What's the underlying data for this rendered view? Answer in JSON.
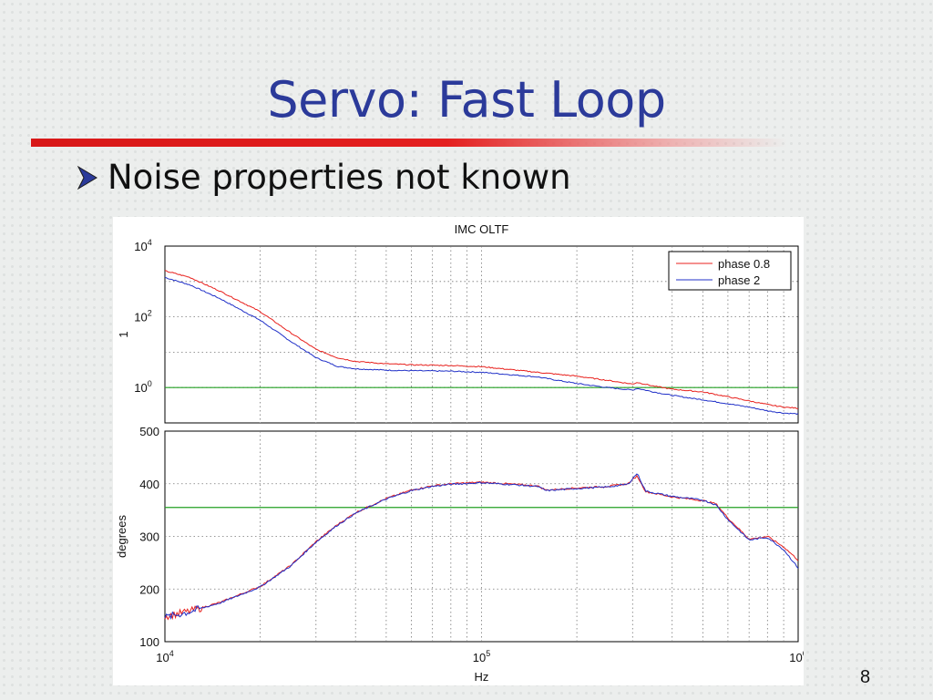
{
  "slide": {
    "title": "Servo: Fast Loop",
    "bullet": "Noise properties not known",
    "page_number": "8"
  },
  "chart_data": [
    {
      "type": "line",
      "title": "IMC OLTF",
      "xlabel": "",
      "ylabel": "1",
      "xscale": "log",
      "yscale": "log",
      "xlim": [
        10000,
        1000000
      ],
      "ylim": [
        0.1,
        10000
      ],
      "yticks": [
        {
          "base": "10",
          "exp": "0"
        },
        {
          "base": "10",
          "exp": "2"
        },
        {
          "base": "10",
          "exp": "4"
        }
      ],
      "grid": true,
      "legend": "top-right",
      "reference_line": {
        "y": 1,
        "color": "#22a022"
      },
      "x": [
        10000,
        12000,
        15000,
        20000,
        25000,
        30000,
        35000,
        40000,
        50000,
        60000,
        80000,
        100000,
        150000,
        200000,
        250000,
        300000,
        310000,
        350000,
        400000,
        500000,
        600000,
        700000,
        800000,
        900000,
        1000000
      ],
      "series": [
        {
          "name": "phase 0.8",
          "color": "#e8201c",
          "values": [
            2000,
            1300,
            520,
            140,
            35,
            12,
            7,
            5.5,
            4.7,
            4.4,
            4.2,
            3.9,
            2.7,
            2.1,
            1.6,
            1.25,
            1.4,
            1.1,
            0.9,
            0.75,
            0.55,
            0.42,
            0.33,
            0.28,
            0.26
          ]
        },
        {
          "name": "phase 2",
          "color": "#2030c8",
          "values": [
            1300,
            800,
            320,
            80,
            20,
            7,
            4,
            3.4,
            3.1,
            3.0,
            2.9,
            2.7,
            2.0,
            1.3,
            1.0,
            0.85,
            0.95,
            0.75,
            0.6,
            0.45,
            0.35,
            0.28,
            0.22,
            0.19,
            0.18
          ]
        }
      ]
    },
    {
      "type": "line",
      "title": "",
      "xlabel": "Hz",
      "ylabel": "degrees",
      "xscale": "log",
      "xlim": [
        10000,
        1000000
      ],
      "ylim": [
        100,
        500
      ],
      "yticks": [
        100,
        200,
        300,
        400,
        500
      ],
      "xticks": [
        {
          "base": "10",
          "exp": "4"
        },
        {
          "base": "10",
          "exp": "5"
        },
        {
          "base": "10",
          "exp": "6"
        }
      ],
      "grid": true,
      "reference_line": {
        "y": 355,
        "color": "#22a022"
      },
      "x": [
        10000,
        12000,
        15000,
        20000,
        25000,
        30000,
        35000,
        40000,
        50000,
        60000,
        70000,
        80000,
        100000,
        120000,
        150000,
        160000,
        200000,
        250000,
        290000,
        310000,
        330000,
        400000,
        500000,
        550000,
        600000,
        700000,
        750000,
        800000,
        900000,
        1000000
      ],
      "series": [
        {
          "name": "phase 0.8",
          "color": "#e8201c",
          "values": [
            148,
            158,
            175,
            205,
            245,
            290,
            322,
            345,
            372,
            388,
            396,
            400,
            403,
            400,
            396,
            388,
            392,
            395,
            400,
            415,
            385,
            375,
            368,
            362,
            335,
            295,
            297,
            300,
            280,
            255
          ]
        },
        {
          "name": "phase 2",
          "color": "#2030c8",
          "values": [
            146,
            157,
            174,
            204,
            244,
            289,
            321,
            344,
            371,
            387,
            395,
            399,
            402,
            399,
            395,
            387,
            391,
            394,
            399,
            420,
            386,
            376,
            369,
            360,
            332,
            293,
            296,
            298,
            275,
            240
          ]
        }
      ]
    }
  ]
}
